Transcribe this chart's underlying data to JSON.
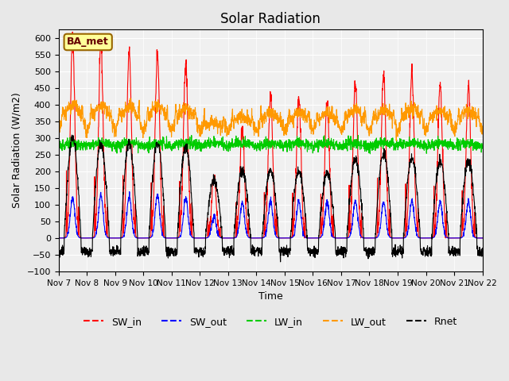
{
  "title": "Solar Radiation",
  "xlabel": "Time",
  "ylabel": "Solar Radiation (W/m2)",
  "ylim": [
    -100,
    625
  ],
  "yticks": [
    -100,
    -50,
    0,
    50,
    100,
    150,
    200,
    250,
    300,
    350,
    400,
    450,
    500,
    550,
    600
  ],
  "xtick_labels": [
    "Nov 7",
    "Nov 8",
    "Nov 9",
    "Nov 10",
    "Nov 11",
    "Nov 12",
    "Nov 13",
    "Nov 14",
    "Nov 15",
    "Nov 16",
    "Nov 17",
    "Nov 18",
    "Nov 19",
    "Nov 20",
    "Nov 21",
    "Nov 22"
  ],
  "colors": {
    "SW_in": "#ff0000",
    "SW_out": "#0000ff",
    "LW_in": "#00cc00",
    "LW_out": "#ff9900",
    "Rnet": "#000000"
  },
  "legend_label": "BA_met",
  "legend_box_color": "#ffff99",
  "legend_box_edge": "#996600",
  "background_color": "#e8e8e8",
  "plot_bg_color": "#f0f0f0",
  "grid_color": "#ffffff",
  "n_days": 15,
  "points_per_day": 144,
  "day_peaks_SW_in": [
    600,
    580,
    560,
    555,
    525,
    185,
    330,
    425,
    420,
    410,
    465,
    490,
    500,
    460,
    460
  ],
  "day_peaks_SW_out": [
    120,
    130,
    125,
    130,
    120,
    65,
    105,
    110,
    110,
    105,
    110,
    110,
    110,
    108,
    108
  ],
  "LW_in_base": 275,
  "LW_out_base": 320,
  "Rnet_night": -40,
  "Rnet_day_peaks": [
    300,
    285,
    285,
    285,
    275,
    175,
    205,
    205,
    200,
    195,
    240,
    255,
    240,
    230,
    235
  ]
}
